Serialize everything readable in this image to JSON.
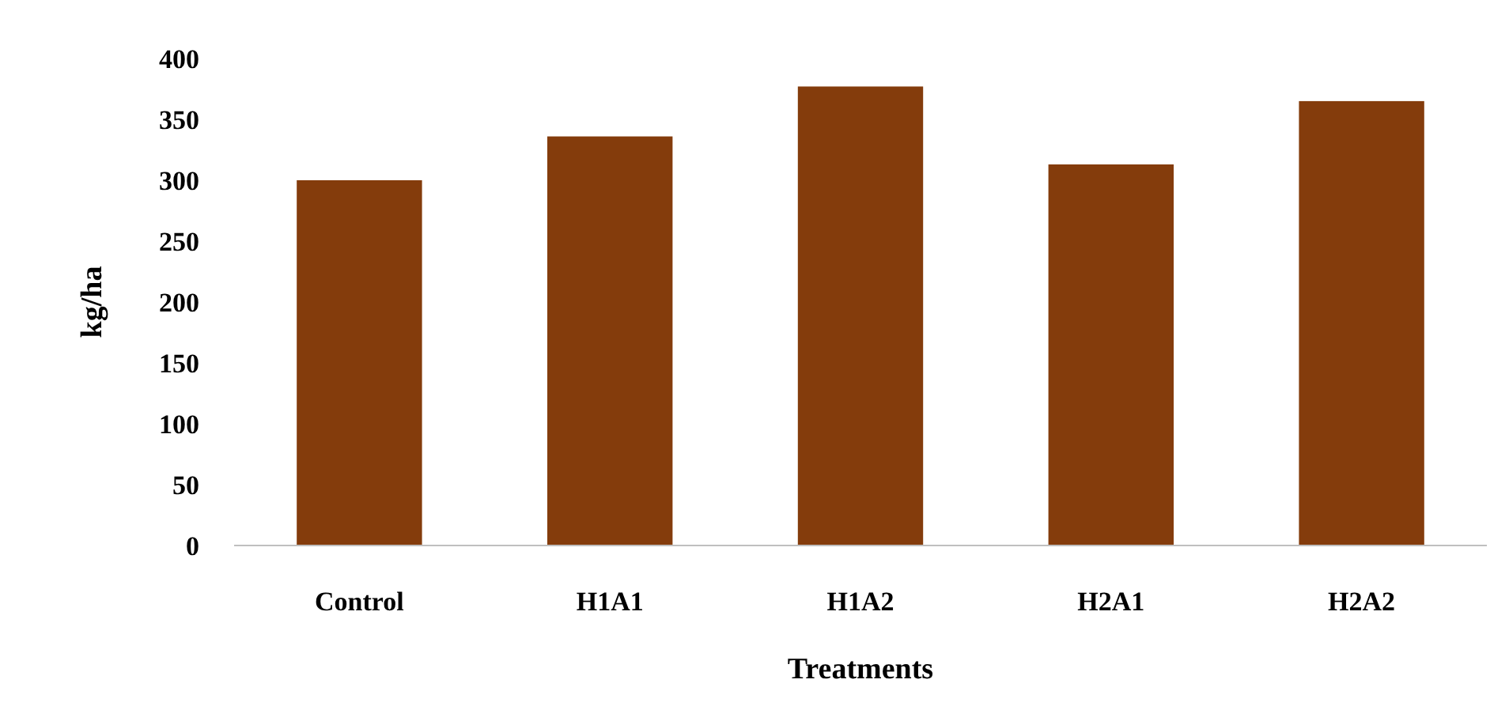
{
  "chart_data": {
    "type": "bar",
    "xlabel": "Treatments",
    "ylabel": "kg/ha",
    "categories": [
      "Control",
      "H1A1",
      "H1A2",
      "H2A1",
      "H2A2"
    ],
    "values": [
      300,
      336,
      377,
      313,
      365
    ],
    "color": "#843c0c",
    "ylim": [
      0,
      400
    ],
    "yticks": [
      0,
      50,
      100,
      150,
      200,
      250,
      300,
      350,
      400
    ],
    "grid": false
  }
}
